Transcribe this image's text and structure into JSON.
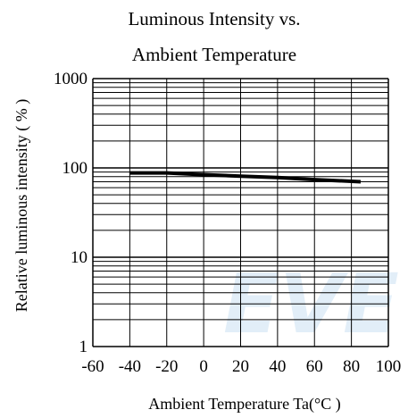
{
  "colors": {
    "grid": "#000000",
    "line": "#000000",
    "watermark": "#cfe3f3",
    "background": "#ffffff"
  },
  "watermark": "EVE",
  "chart_data": {
    "type": "line",
    "title": [
      "Luminous Intensity vs.",
      "Ambient Temperature"
    ],
    "xlabel": "Ambient Temperature Ta(°C )",
    "ylabel": "Relative luminous intensity ( % )",
    "xlim": [
      -60,
      100
    ],
    "ylim": [
      1,
      1000
    ],
    "yscale": "log",
    "grid": true,
    "xticks": [
      -60,
      -40,
      -20,
      0,
      20,
      40,
      60,
      80,
      100
    ],
    "xtick_labels": [
      "-60",
      "-40",
      "-20",
      "0",
      "20",
      "40",
      "60",
      "80",
      "100"
    ],
    "yticks": [
      1,
      10,
      100,
      1000
    ],
    "ytick_labels": [
      "1",
      "10",
      "100",
      "1000"
    ],
    "series": [
      {
        "x": [
          -40,
          -20,
          -5,
          20,
          40,
          60,
          85
        ],
        "y": [
          88,
          88,
          85,
          81,
          78,
          74,
          70
        ]
      }
    ]
  }
}
